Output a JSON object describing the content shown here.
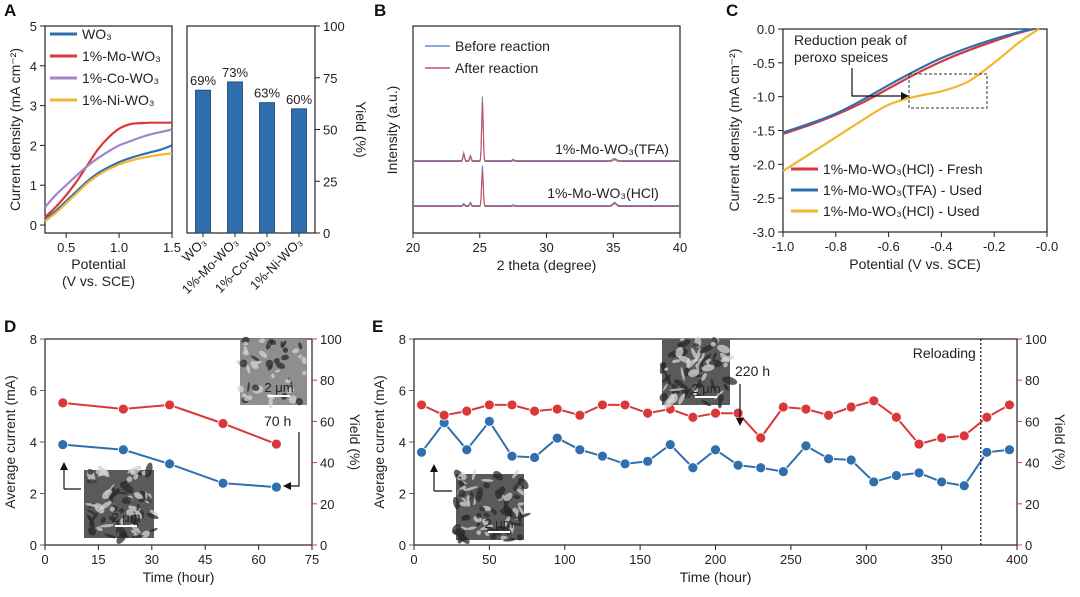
{
  "colors": {
    "blue": "#2f6fae",
    "red": "#d9383a",
    "purple": "#a184c9",
    "yellow": "#f2b630",
    "bar": "#2f6fae",
    "xrd_blue": "#5b8ec9",
    "xrd_red": "#c85560"
  },
  "chart_data": [
    {
      "panel": "A",
      "type": "line",
      "xlabel": "Potential",
      "xlabel2": "(V vs. SCE)",
      "ylabel": "Current density (mA cm⁻²)",
      "xlim": [
        0.3,
        1.5
      ],
      "ylim": [
        -0.2,
        5.0
      ],
      "xticks": [
        "0.5",
        "1.0",
        "1.5"
      ],
      "yticks": [
        "0",
        "1",
        "2",
        "3",
        "4",
        "5"
      ],
      "legend": "top-left",
      "series": [
        {
          "name": "WO₃",
          "color": "blue",
          "x": [
            0.3,
            0.4,
            0.5,
            0.6,
            0.7,
            0.8,
            0.9,
            1.0,
            1.1,
            1.2,
            1.3,
            1.4,
            1.5
          ],
          "y": [
            0.15,
            0.35,
            0.6,
            0.85,
            1.1,
            1.3,
            1.45,
            1.58,
            1.68,
            1.76,
            1.83,
            1.9,
            2.0
          ]
        },
        {
          "name": "1%-Mo-WO₃",
          "color": "red",
          "x": [
            0.3,
            0.4,
            0.5,
            0.6,
            0.7,
            0.8,
            0.9,
            1.0,
            1.1,
            1.2,
            1.3,
            1.4,
            1.5
          ],
          "y": [
            0.2,
            0.45,
            0.75,
            1.1,
            1.5,
            1.9,
            2.2,
            2.42,
            2.53,
            2.56,
            2.57,
            2.57,
            2.57
          ]
        },
        {
          "name": "1%-Co-WO₃",
          "color": "purple",
          "x": [
            0.3,
            0.4,
            0.5,
            0.6,
            0.7,
            0.8,
            0.9,
            1.0,
            1.1,
            1.2,
            1.3,
            1.4,
            1.5
          ],
          "y": [
            0.45,
            0.75,
            1.0,
            1.25,
            1.48,
            1.68,
            1.85,
            2.0,
            2.1,
            2.2,
            2.28,
            2.34,
            2.4
          ]
        },
        {
          "name": "1%-Ni-WO₃",
          "color": "yellow",
          "x": [
            0.3,
            0.4,
            0.5,
            0.6,
            0.7,
            0.8,
            0.9,
            1.0,
            1.1,
            1.2,
            1.3,
            1.4,
            1.5
          ],
          "y": [
            0.1,
            0.3,
            0.55,
            0.8,
            1.05,
            1.25,
            1.4,
            1.52,
            1.61,
            1.68,
            1.73,
            1.77,
            1.8
          ]
        }
      ]
    },
    {
      "panel": "A2",
      "type": "bar",
      "ylabel": "Yield (%)",
      "ylim": [
        0,
        100
      ],
      "yticks": [
        "0",
        "25",
        "50",
        "75",
        "100"
      ],
      "categories": [
        "WO₃",
        "1%-Mo-WO₃",
        "1%-Co-WO₃",
        "1%-Ni-WO₃"
      ],
      "values": [
        69,
        73,
        63,
        60
      ],
      "data_labels": [
        "69%",
        "73%",
        "63%",
        "60%"
      ]
    },
    {
      "panel": "B",
      "type": "line",
      "xlabel": "2 theta (degree)",
      "ylabel": "Intensity (a.u.)",
      "xlim": [
        20,
        40
      ],
      "xticks": [
        "20",
        "25",
        "30",
        "35",
        "40"
      ],
      "legend": "top-left",
      "series": [
        {
          "name": "Before reaction",
          "color": "xrd_blue"
        },
        {
          "name": "After reaction",
          "color": "xrd_red"
        }
      ],
      "peaks": [
        {
          "x": 23.8,
          "h_top": 0.12,
          "h_bot": 0.05
        },
        {
          "x": 24.3,
          "h_top": 0.08,
          "h_bot": 0.08
        },
        {
          "x": 25.2,
          "h_top": 1.0,
          "h_bot": 1.0
        },
        {
          "x": 27.5,
          "h_top": 0.02,
          "h_bot": 0.02
        },
        {
          "x": 35.1,
          "h_top": 0.03,
          "h_bot": 0.08
        }
      ],
      "traces": [
        {
          "label": "1%-Mo-WO₃(TFA)",
          "offset": 1.0
        },
        {
          "label": "1%-Mo-WO₃(HCl)",
          "offset": 0.0
        }
      ]
    },
    {
      "panel": "C",
      "type": "line",
      "xlabel": "Potential (V vs. SCE)",
      "ylabel": "Current density (mA cm⁻²)",
      "xlim": [
        -1.0,
        0.0
      ],
      "ylim": [
        -3.0,
        0.0
      ],
      "xticks": [
        "-1.0",
        "-0.8",
        "-0.6",
        "-0.4",
        "-0.2",
        "-0.0"
      ],
      "yticks": [
        "0.0",
        "-0.5",
        "-1.0",
        "-1.5",
        "-2.0",
        "-2.5",
        "-3.0"
      ],
      "legend": "bottom-right",
      "annotation": "Reduction peak of peroxo speices",
      "annotation_line1": "Reduction peak of",
      "annotation_line2": "peroxo speices",
      "series": [
        {
          "name": "1%-Mo-WO₃(HCl) - Fresh",
          "color": "red",
          "x": [
            -1.0,
            -0.9,
            -0.8,
            -0.7,
            -0.6,
            -0.5,
            -0.4,
            -0.3,
            -0.2,
            -0.1,
            -0.05
          ],
          "y": [
            -1.55,
            -1.42,
            -1.27,
            -1.09,
            -0.88,
            -0.67,
            -0.48,
            -0.32,
            -0.18,
            -0.05,
            0.0
          ]
        },
        {
          "name": "1%-Mo-WO₃(TFA) - Used",
          "color": "blue",
          "x": [
            -1.0,
            -0.9,
            -0.8,
            -0.7,
            -0.6,
            -0.5,
            -0.4,
            -0.3,
            -0.2,
            -0.1,
            -0.05
          ],
          "y": [
            -1.53,
            -1.4,
            -1.25,
            -1.05,
            -0.83,
            -0.62,
            -0.43,
            -0.28,
            -0.15,
            -0.04,
            0.0
          ]
        },
        {
          "name": "1%-Mo-WO₃(HCl) - Used",
          "color": "yellow",
          "x": [
            -1.0,
            -0.9,
            -0.8,
            -0.7,
            -0.6,
            -0.5,
            -0.4,
            -0.3,
            -0.2,
            -0.1,
            -0.03
          ],
          "y": [
            -2.1,
            -1.85,
            -1.6,
            -1.35,
            -1.12,
            -1.0,
            -0.92,
            -0.78,
            -0.5,
            -0.18,
            0.0
          ]
        }
      ]
    },
    {
      "panel": "D",
      "type": "scatter",
      "xlabel": "Time (hour)",
      "ylabel": "Average current (mA)",
      "ylabel2": "Yield (%)",
      "xlim": [
        0,
        75
      ],
      "ylim": [
        0,
        8
      ],
      "ylim2": [
        0,
        100
      ],
      "xticks": [
        "0",
        "15",
        "30",
        "45",
        "60",
        "75"
      ],
      "yticks": [
        "0",
        "2",
        "4",
        "6",
        "8"
      ],
      "yticks2": [
        "0",
        "20",
        "40",
        "60",
        "80",
        "100"
      ],
      "annotation": "70 h",
      "scale_bar_top": "2 μm",
      "scale_bar_bottom": "2 μm",
      "series": [
        {
          "name": "Average current",
          "axis": "left",
          "color": "blue",
          "x": [
            5,
            22,
            35,
            50,
            65
          ],
          "y": [
            3.9,
            3.7,
            3.15,
            2.4,
            2.25
          ]
        },
        {
          "name": "Yield",
          "axis": "right",
          "color": "red",
          "x": [
            5,
            22,
            35,
            50,
            65
          ],
          "y": [
            69,
            66,
            68,
            59,
            49
          ]
        }
      ]
    },
    {
      "panel": "E",
      "type": "scatter",
      "xlabel": "Time (hour)",
      "ylabel": "Average current (mA)",
      "ylabel2": "Yield (%)",
      "xlim": [
        0,
        400
      ],
      "ylim": [
        0,
        8
      ],
      "ylim2": [
        0,
        100
      ],
      "xticks": [
        "0",
        "50",
        "100",
        "150",
        "200",
        "250",
        "300",
        "350",
        "400"
      ],
      "yticks": [
        "0",
        "2",
        "4",
        "6",
        "8"
      ],
      "yticks2": [
        "0",
        "20",
        "40",
        "60",
        "80",
        "100"
      ],
      "annotation": "220 h",
      "reloading_label": "Reloading",
      "reloading_x": 376,
      "scale_bar_top": "2 μm",
      "scale_bar_bottom": "2 μm",
      "series": [
        {
          "name": "Average current",
          "axis": "left",
          "color": "blue",
          "x": [
            5,
            20,
            35,
            50,
            65,
            80,
            95,
            110,
            125,
            140,
            155,
            170,
            185,
            200,
            215,
            230,
            245,
            260,
            275,
            290,
            305,
            320,
            335,
            350,
            365,
            380,
            395
          ],
          "y": [
            3.6,
            4.75,
            3.7,
            4.8,
            3.45,
            3.4,
            4.15,
            3.7,
            3.45,
            3.15,
            3.25,
            3.9,
            3.0,
            3.7,
            3.1,
            3.0,
            2.85,
            3.85,
            3.35,
            3.3,
            2.45,
            2.7,
            2.8,
            2.45,
            2.3,
            3.6,
            3.7
          ]
        },
        {
          "name": "Yield",
          "axis": "right",
          "color": "red",
          "x": [
            5,
            20,
            35,
            50,
            65,
            80,
            95,
            110,
            125,
            140,
            155,
            170,
            185,
            200,
            215,
            230,
            245,
            260,
            275,
            290,
            305,
            320,
            335,
            350,
            365,
            380,
            395
          ],
          "y": [
            68,
            63,
            65,
            68,
            68,
            65,
            66,
            63,
            68,
            68,
            64,
            66,
            62,
            64,
            64,
            52,
            67,
            66,
            63,
            67,
            70,
            62,
            49,
            52,
            53,
            62,
            68
          ]
        }
      ]
    }
  ],
  "letters": [
    "A",
    "B",
    "C",
    "D",
    "E"
  ]
}
